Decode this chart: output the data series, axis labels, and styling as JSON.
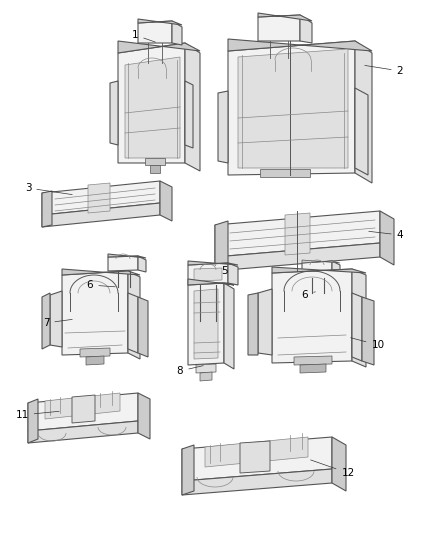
{
  "background_color": "#ffffff",
  "line_color": "#555555",
  "line_color2": "#888888",
  "text_color": "#000000",
  "figsize": [
    4.38,
    5.33
  ],
  "dpi": 100,
  "label_fs": 7.5,
  "lw_main": 0.8,
  "lw_detail": 0.5,
  "face_light": "#f2f2f2",
  "face_mid": "#e0e0e0",
  "face_dark": "#cccccc",
  "face_darker": "#b8b8b8"
}
